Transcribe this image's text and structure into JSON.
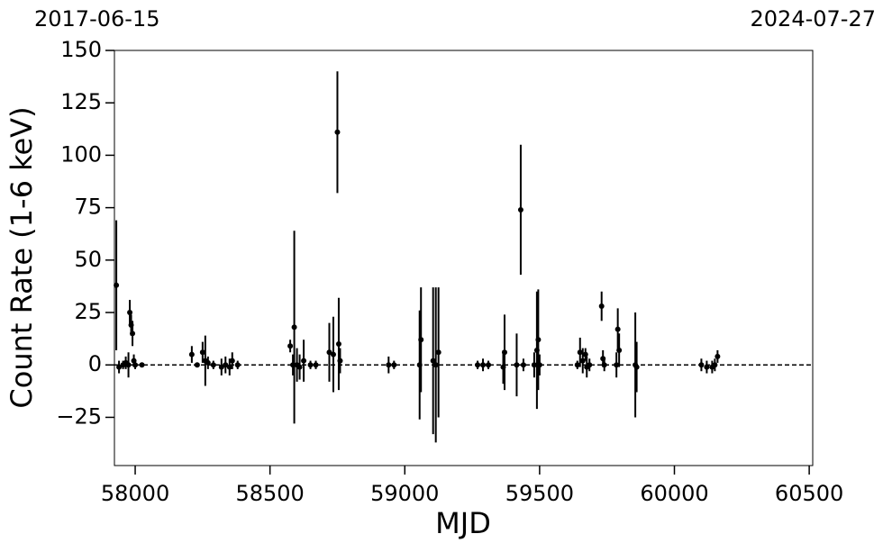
{
  "chart_data": {
    "type": "scatter",
    "top_labels": [
      "2017-06-15",
      "2024-07-27"
    ],
    "xlabel": "MJD",
    "ylabel": "Count Rate (1-6 keV)",
    "color": "#000000",
    "reference_line": 0,
    "xlim": [
      57923,
      60513
    ],
    "ylim": [
      -48,
      150
    ],
    "xticks": [
      58000,
      58500,
      59000,
      59500,
      60000,
      60500
    ],
    "yticks": [
      {
        "value": -25,
        "label": "−25"
      },
      0,
      25,
      50,
      75,
      100,
      125,
      150
    ],
    "x": [
      57930,
      57940,
      57955,
      57965,
      57975,
      57980,
      57985,
      57990,
      57995,
      58000,
      58025,
      58210,
      58230,
      58250,
      58260,
      58270,
      58290,
      58320,
      58335,
      58350,
      58360,
      58380,
      58575,
      58585,
      58590,
      58600,
      58610,
      58625,
      58650,
      58670,
      58720,
      58735,
      58750,
      58755,
      58760,
      58940,
      58960,
      59055,
      59060,
      59105,
      59115,
      59125,
      59270,
      59290,
      59310,
      59365,
      59370,
      59415,
      59430,
      59440,
      59480,
      59490,
      59495,
      59500,
      59640,
      59650,
      59660,
      59670,
      59675,
      59685,
      59730,
      59735,
      59740,
      59785,
      59790,
      59795,
      59855,
      59860,
      60100,
      60120,
      60140,
      60150,
      60160
    ],
    "values": [
      38,
      -1,
      0,
      1,
      0,
      25,
      19,
      15,
      2,
      0,
      0,
      5,
      0,
      6,
      2,
      1,
      0,
      -1,
      0,
      -1,
      2,
      0,
      9,
      0,
      18,
      0,
      -1,
      2,
      0,
      0,
      6,
      5,
      111,
      10,
      2,
      0,
      0,
      0,
      12,
      2,
      0,
      6,
      0,
      0,
      0,
      -1,
      6,
      0,
      74,
      0,
      0,
      7,
      12,
      0,
      0,
      6,
      2,
      5,
      -1,
      0,
      28,
      3,
      0,
      0,
      17,
      7,
      0,
      -1,
      0,
      -1,
      -1,
      0,
      4
    ],
    "errors": [
      31,
      3,
      2,
      3,
      6,
      6,
      5,
      6,
      3,
      2,
      1,
      4,
      1,
      5,
      12,
      3,
      2,
      4,
      4,
      4,
      4,
      2,
      3,
      5,
      46,
      8,
      6,
      10,
      2,
      2,
      14,
      18,
      29,
      22,
      6,
      4,
      2,
      26,
      25,
      35,
      37,
      31,
      2,
      3,
      2,
      8,
      18,
      15,
      31,
      3,
      6,
      28,
      24,
      5,
      2,
      7,
      6,
      3,
      5,
      3,
      7,
      4,
      3,
      6,
      10,
      8,
      25,
      12,
      3,
      3,
      3,
      3,
      3
    ]
  }
}
